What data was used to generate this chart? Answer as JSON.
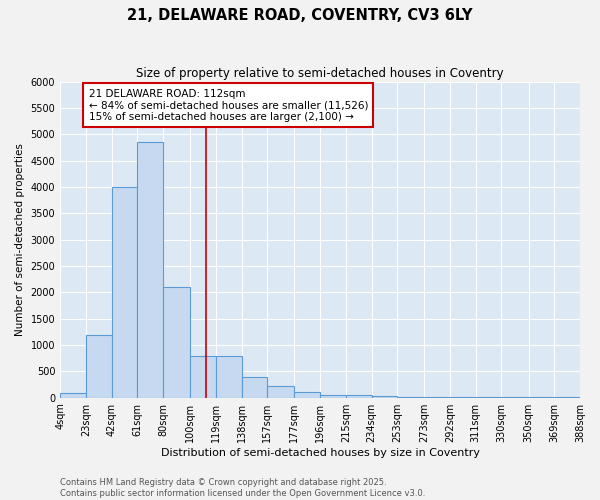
{
  "title1": "21, DELAWARE ROAD, COVENTRY, CV3 6LY",
  "title2": "Size of property relative to semi-detached houses in Coventry",
  "xlabel": "Distribution of semi-detached houses by size in Coventry",
  "ylabel": "Number of semi-detached properties",
  "bin_edges": [
    4,
    23,
    42,
    61,
    80,
    100,
    119,
    138,
    157,
    177,
    196,
    215,
    234,
    253,
    273,
    292,
    311,
    330,
    350,
    369,
    388
  ],
  "bin_labels": [
    "4sqm",
    "23sqm",
    "42sqm",
    "61sqm",
    "80sqm",
    "100sqm",
    "119sqm",
    "138sqm",
    "157sqm",
    "177sqm",
    "196sqm",
    "215sqm",
    "234sqm",
    "253sqm",
    "273sqm",
    "292sqm",
    "311sqm",
    "330sqm",
    "350sqm",
    "369sqm",
    "388sqm"
  ],
  "bar_heights": [
    80,
    1200,
    4000,
    4850,
    2100,
    800,
    800,
    390,
    220,
    110,
    60,
    50,
    40,
    5,
    5,
    5,
    5,
    5,
    5,
    5
  ],
  "bar_color": "#c6d9f0",
  "bar_edge_color": "#5b9bd5",
  "property_size": 112,
  "vline_color": "#cc0000",
  "annotation_text": "21 DELAWARE ROAD: 112sqm\n← 84% of semi-detached houses are smaller (11,526)\n15% of semi-detached houses are larger (2,100) →",
  "annotation_box_color": "#cc0000",
  "ylim": [
    0,
    6000
  ],
  "yticks": [
    0,
    500,
    1000,
    1500,
    2000,
    2500,
    3000,
    3500,
    4000,
    4500,
    5000,
    5500,
    6000
  ],
  "background_color": "#dde8f5",
  "grid_color": "#ffffff",
  "fig_background": "#f2f2f2",
  "footnote1": "Contains HM Land Registry data © Crown copyright and database right 2025.",
  "footnote2": "Contains public sector information licensed under the Open Government Licence v3.0."
}
